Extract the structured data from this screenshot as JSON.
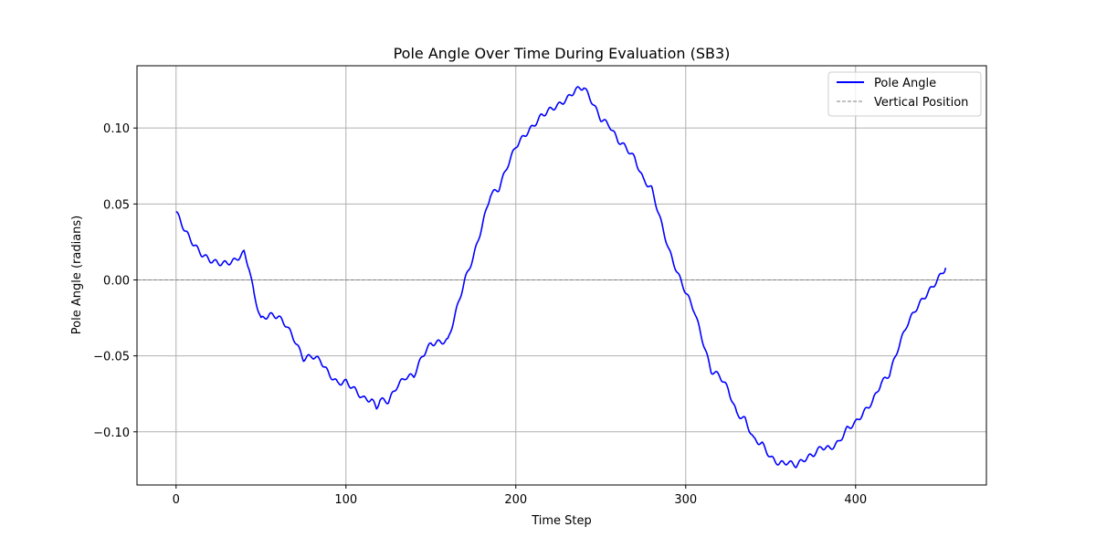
{
  "chart_data": {
    "type": "line",
    "title": "Pole Angle Over Time During Evaluation (SB3)",
    "xlabel": "Time Step",
    "ylabel": "Pole Angle (radians)",
    "xlim": [
      -23,
      477
    ],
    "ylim": [
      -0.135,
      0.141
    ],
    "xticks": [
      0,
      100,
      200,
      300,
      400
    ],
    "yticks": [
      -0.1,
      -0.05,
      0.0,
      0.05,
      0.1
    ],
    "xtick_labels": [
      "0",
      "100",
      "200",
      "300",
      "400"
    ],
    "ytick_labels": [
      "−0.10",
      "−0.05",
      "0.00",
      "0.05",
      "0.10"
    ],
    "grid": true,
    "legend_position": "top-right",
    "series": [
      {
        "name": "Pole Angle",
        "color": "#0000ff",
        "style": "solid",
        "x": [
          0,
          5,
          10,
          15,
          20,
          25,
          30,
          35,
          40,
          43,
          46,
          50,
          55,
          60,
          65,
          70,
          75,
          80,
          85,
          90,
          95,
          100,
          105,
          110,
          115,
          118,
          120,
          125,
          130,
          135,
          140,
          145,
          150,
          155,
          160,
          165,
          170,
          175,
          180,
          185,
          190,
          195,
          200,
          205,
          210,
          215,
          220,
          225,
          230,
          235,
          240,
          245,
          250,
          255,
          260,
          265,
          270,
          275,
          280,
          285,
          290,
          295,
          300,
          305,
          310,
          315,
          320,
          325,
          330,
          335,
          340,
          345,
          350,
          355,
          360,
          365,
          370,
          375,
          380,
          385,
          390,
          395,
          400,
          405,
          410,
          415,
          420,
          425,
          430,
          435,
          440,
          445,
          450,
          453
        ],
        "y": [
          0.045,
          0.033,
          0.024,
          0.017,
          0.013,
          0.011,
          0.011,
          0.013,
          0.018,
          0.008,
          -0.01,
          -0.026,
          -0.023,
          -0.024,
          -0.03,
          -0.04,
          -0.052,
          -0.05,
          -0.053,
          -0.062,
          -0.068,
          -0.067,
          -0.072,
          -0.078,
          -0.079,
          -0.084,
          -0.079,
          -0.08,
          -0.07,
          -0.064,
          -0.063,
          -0.05,
          -0.042,
          -0.041,
          -0.04,
          -0.02,
          0.0,
          0.015,
          0.035,
          0.056,
          0.06,
          0.075,
          0.088,
          0.095,
          0.101,
          0.108,
          0.112,
          0.115,
          0.119,
          0.125,
          0.127,
          0.117,
          0.106,
          0.102,
          0.092,
          0.087,
          0.08,
          0.066,
          0.06,
          0.04,
          0.02,
          0.005,
          -0.008,
          -0.02,
          -0.04,
          -0.06,
          -0.063,
          -0.072,
          -0.088,
          -0.092,
          -0.105,
          -0.108,
          -0.117,
          -0.121,
          -0.12,
          -0.122,
          -0.118,
          -0.115,
          -0.11,
          -0.111,
          -0.107,
          -0.098,
          -0.094,
          -0.087,
          -0.08,
          -0.068,
          -0.062,
          -0.045,
          -0.03,
          -0.02,
          -0.012,
          -0.005,
          0.003,
          0.008
        ]
      },
      {
        "name": "Vertical Position",
        "color": "#808080",
        "style": "dashed",
        "y_constant": 0.0
      }
    ]
  }
}
